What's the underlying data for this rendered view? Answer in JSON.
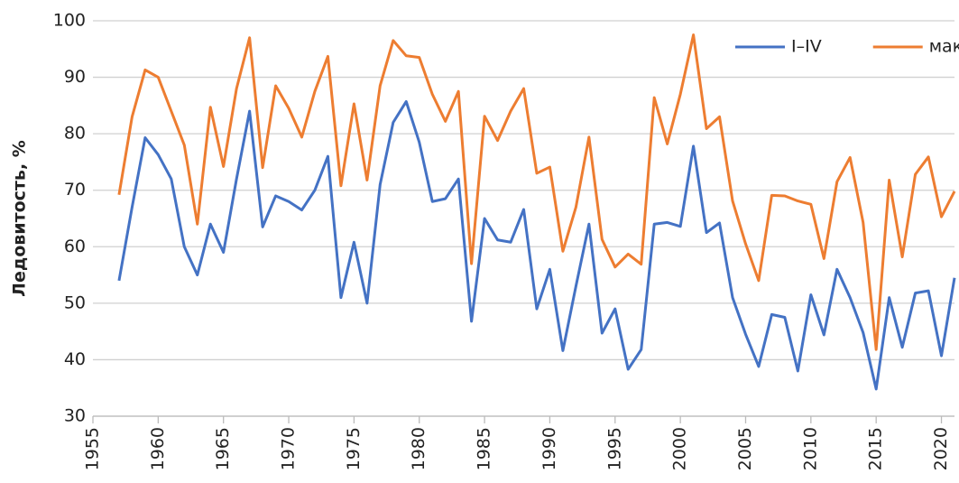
{
  "chart_data": {
    "type": "line",
    "ylabel": "Ледовитость, %",
    "x": [
      1957,
      1958,
      1959,
      1960,
      1961,
      1962,
      1963,
      1964,
      1965,
      1966,
      1967,
      1968,
      1969,
      1970,
      1971,
      1972,
      1973,
      1974,
      1975,
      1976,
      1977,
      1978,
      1979,
      1980,
      1981,
      1982,
      1983,
      1984,
      1985,
      1986,
      1987,
      1988,
      1989,
      1990,
      1991,
      1992,
      1993,
      1994,
      1995,
      1996,
      1997,
      1998,
      1999,
      2000,
      2001,
      2002,
      2003,
      2004,
      2005,
      2006,
      2007,
      2008,
      2009,
      2010,
      2011,
      2012,
      2013,
      2014,
      2015,
      2016,
      2017,
      2018,
      2019,
      2020,
      2021
    ],
    "series": [
      {
        "name": "I–IV",
        "color": "#4472c4",
        "values": [
          54,
          67,
          79.3,
          76.3,
          72,
          60,
          55,
          64,
          59,
          72,
          84,
          63.5,
          69,
          68,
          66.5,
          70,
          76,
          51,
          60.8,
          50,
          71,
          82,
          85.7,
          78.5,
          68,
          68.5,
          72,
          46.8,
          65,
          61.2,
          60.8,
          66.6,
          49,
          56,
          41.6,
          53,
          64,
          44.7,
          49,
          38.3,
          41.8,
          64,
          64.3,
          63.6,
          77.8,
          62.5,
          64.2,
          51,
          44.5,
          38.8,
          48,
          47.5,
          38,
          51.5,
          44.4,
          56,
          51,
          44.8,
          34.8,
          51,
          42.2,
          51.8,
          52.2,
          40.7,
          54.5
        ]
      },
      {
        "name": "макс",
        "color": "#ed7d31",
        "values": [
          69.2,
          83,
          91.3,
          90,
          84,
          78,
          64,
          84.7,
          74.2,
          88,
          97,
          74,
          88.5,
          84.5,
          79.4,
          87.5,
          93.7,
          70.8,
          85.3,
          71.8,
          88.5,
          96.5,
          93.8,
          93.5,
          87,
          82.2,
          87.5,
          57,
          83.1,
          78.8,
          84,
          88,
          73,
          74.1,
          59.2,
          67,
          79.4,
          61.3,
          56.4,
          58.7,
          56.9,
          86.4,
          78.2,
          87,
          97.5,
          80.9,
          83,
          68.1,
          60.5,
          54,
          69.1,
          69,
          68.1,
          67.5,
          57.9,
          71.5,
          75.8,
          64.3,
          41.8,
          71.8,
          58.2,
          72.8,
          75.9,
          65.3,
          69.8
        ]
      }
    ],
    "xlim": [
      1955,
      2021
    ],
    "xticks": [
      1955,
      1960,
      1965,
      1970,
      1975,
      1980,
      1985,
      1990,
      1995,
      2000,
      2005,
      2010,
      2015,
      2020
    ],
    "ylim": [
      30,
      100
    ],
    "yticks": [
      30,
      40,
      50,
      60,
      70,
      80,
      90,
      100
    ],
    "grid": true,
    "legend": "upper right"
  }
}
